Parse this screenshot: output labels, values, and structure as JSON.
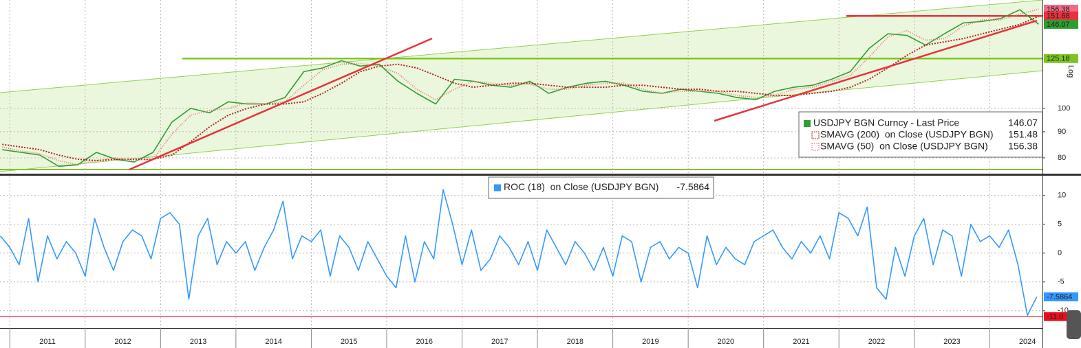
{
  "chart_data": [
    {
      "type": "line",
      "log_scale": true,
      "ylabel": "Log",
      "xlim": [
        2010.87,
        2024.7
      ],
      "ylim": [
        74.5,
        163
      ],
      "yticks": [
        80,
        90,
        100
      ],
      "grid": true,
      "x": [
        2010.9,
        2011.15,
        2011.4,
        2011.65,
        2011.9,
        2012.15,
        2012.4,
        2012.65,
        2012.9,
        2013.15,
        2013.4,
        2013.65,
        2013.9,
        2014.15,
        2014.4,
        2014.65,
        2014.9,
        2015.15,
        2015.4,
        2015.65,
        2015.9,
        2016.15,
        2016.4,
        2016.65,
        2016.9,
        2017.15,
        2017.4,
        2017.65,
        2017.9,
        2018.15,
        2018.4,
        2018.65,
        2018.9,
        2019.15,
        2019.4,
        2019.65,
        2019.9,
        2020.15,
        2020.4,
        2020.65,
        2020.9,
        2021.15,
        2021.4,
        2021.65,
        2021.9,
        2022.15,
        2022.4,
        2022.65,
        2022.9,
        2023.15,
        2023.4,
        2023.65,
        2023.9,
        2024.15,
        2024.4,
        2024.65
      ],
      "series": [
        {
          "name": "USDJPY BGN Curncy - Last Price",
          "color": "#2f9e2f",
          "dash": "none",
          "values": [
            83,
            82,
            81,
            77,
            77.5,
            82,
            79.5,
            78.5,
            82,
            94,
            100,
            98,
            103,
            102,
            102,
            105,
            118,
            120,
            124,
            121,
            122,
            113,
            107,
            102,
            114,
            113,
            111,
            110,
            113,
            107,
            110,
            112,
            113,
            111,
            108,
            107,
            109,
            108,
            107,
            105,
            104,
            108,
            110,
            111,
            114,
            118,
            131,
            140,
            139,
            133,
            140,
            147,
            148,
            150,
            156,
            146.07
          ]
        },
        {
          "name": "SMAVG (200)  on Close (USDJPY BGN)",
          "color": "#b22222",
          "dash": "2 2",
          "values": [
            85,
            84,
            83,
            81,
            79.5,
            79,
            79.5,
            79.5,
            79.5,
            81,
            86,
            92,
            97,
            100,
            102,
            102,
            103,
            107,
            112,
            118,
            121,
            122,
            120,
            116,
            112,
            110,
            111,
            112,
            112,
            111,
            110,
            110,
            110,
            111,
            111,
            110,
            109,
            109,
            108,
            108,
            107,
            106,
            106,
            107,
            108,
            110,
            114,
            120,
            127,
            133,
            135,
            137,
            140,
            143,
            146,
            151.48
          ]
        },
        {
          "name": "SMAVG (50)  on Close (USDJPY BGN)",
          "color": "#e87a7a",
          "dash": "1 2",
          "values": [
            84,
            82.5,
            81.5,
            79,
            77.5,
            79,
            80,
            79,
            79.5,
            89,
            97,
            99,
            100,
            102.5,
            102,
            103,
            111,
            119,
            122,
            122.5,
            121,
            117,
            109,
            104,
            109,
            113,
            112,
            111,
            111.5,
            109,
            109,
            111,
            112,
            112,
            109,
            107,
            108,
            108,
            108,
            106,
            105,
            106,
            109,
            110,
            113,
            116,
            126,
            138,
            142,
            136,
            137,
            145,
            149,
            149,
            153,
            156.38
          ]
        }
      ],
      "levels": [
        {
          "value": 151.68,
          "color": "#e8323c"
        },
        {
          "value": 125.18,
          "color": "#7cc520"
        }
      ]
    },
    {
      "type": "line",
      "xlim": [
        2010.87,
        2024.7
      ],
      "ylim": [
        -13,
        13.3
      ],
      "yticks": [
        10,
        5,
        0,
        -5,
        -10
      ],
      "grid": true,
      "xticks": [
        2011,
        2012,
        2013,
        2014,
        2015,
        2016,
        2017,
        2018,
        2019,
        2020,
        2021,
        2022,
        2023,
        2024
      ],
      "x": [
        2010.875,
        2011,
        2011.125,
        2011.25,
        2011.375,
        2011.5,
        2011.625,
        2011.75,
        2011.875,
        2012,
        2012.125,
        2012.25,
        2012.375,
        2012.5,
        2012.625,
        2012.75,
        2012.875,
        2013,
        2013.125,
        2013.25,
        2013.375,
        2013.5,
        2013.625,
        2013.75,
        2013.875,
        2014,
        2014.125,
        2014.25,
        2014.375,
        2014.5,
        2014.625,
        2014.75,
        2014.875,
        2015,
        2015.125,
        2015.25,
        2015.375,
        2015.5,
        2015.625,
        2015.75,
        2015.875,
        2016,
        2016.125,
        2016.25,
        2016.375,
        2016.5,
        2016.625,
        2016.75,
        2016.875,
        2017,
        2017.125,
        2017.25,
        2017.375,
        2017.5,
        2017.625,
        2017.75,
        2017.875,
        2018,
        2018.125,
        2018.25,
        2018.375,
        2018.5,
        2018.625,
        2018.75,
        2018.875,
        2019,
        2019.125,
        2019.25,
        2019.375,
        2019.5,
        2019.625,
        2019.75,
        2019.875,
        2020,
        2020.125,
        2020.25,
        2020.375,
        2020.5,
        2020.625,
        2020.75,
        2020.875,
        2021,
        2021.125,
        2021.25,
        2021.375,
        2021.5,
        2021.625,
        2021.75,
        2021.875,
        2022,
        2022.125,
        2022.25,
        2022.375,
        2022.5,
        2022.625,
        2022.75,
        2022.875,
        2023,
        2023.125,
        2023.25,
        2023.375,
        2023.5,
        2023.625,
        2023.75,
        2023.875,
        2024,
        2024.125,
        2024.25,
        2024.375,
        2024.5,
        2024.625
      ],
      "series": [
        {
          "name": "ROC (18)  on Close (USDJPY BGN)",
          "color": "#3399ff",
          "values": [
            3,
            1,
            -2,
            6,
            -5,
            3,
            -1,
            2,
            0,
            -4,
            6,
            1,
            -3,
            2,
            4,
            3,
            -1,
            6,
            7,
            5,
            -8,
            3,
            6,
            -2,
            2,
            0,
            2,
            -3,
            1,
            4,
            9,
            -1,
            3,
            2,
            4,
            -4,
            3,
            1,
            -3,
            2,
            -1,
            -4,
            -6,
            3,
            -5,
            2,
            -1,
            11,
            5,
            -2,
            4,
            -3,
            -1,
            3,
            1,
            -2,
            2,
            -3,
            4,
            1,
            -2,
            2,
            0,
            -3,
            1,
            -4,
            3,
            2,
            -5,
            1,
            2,
            -1,
            1,
            0,
            -6,
            3,
            -2,
            1,
            -1,
            -2,
            2,
            3,
            4,
            1,
            -1,
            2,
            0,
            3,
            -1,
            7,
            6,
            3,
            8,
            -6,
            -8,
            1,
            -4,
            3,
            6,
            -2,
            4,
            3,
            -4,
            5,
            2,
            3,
            1,
            4,
            -2,
            -10.8,
            -7.5864
          ]
        }
      ],
      "levels": [
        {
          "value": -11,
          "label": "-11.0",
          "color": "#e8101c"
        }
      ]
    }
  ]
}
